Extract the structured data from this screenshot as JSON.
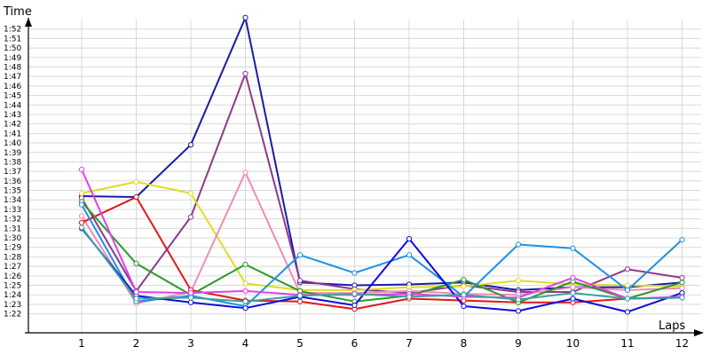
{
  "chart_data": {
    "type": "line",
    "title": "",
    "ylabel": "Time",
    "xlabel": "Laps",
    "x": [
      1,
      2,
      3,
      4,
      5,
      6,
      7,
      8,
      9,
      10,
      11,
      12
    ],
    "ylim_seconds": [
      80,
      113
    ],
    "grid": true,
    "legend": "none",
    "y_tick_labels": [
      "1:22",
      "1:23",
      "1:24",
      "1:25",
      "1:26",
      "1:27",
      "1:28",
      "1:29",
      "1:30",
      "1:31",
      "1:32",
      "1:33",
      "1:34",
      "1:35",
      "1:36",
      "1:37",
      "1:38",
      "1:39",
      "1:40",
      "1:41",
      "1:42",
      "1:43",
      "1:44",
      "1:45",
      "1:46",
      "1:47",
      "1:48",
      "1:49",
      "1:50",
      "1:51",
      "1:52"
    ],
    "y_tick_values": [
      82,
      83,
      84,
      85,
      86,
      87,
      88,
      89,
      90,
      91,
      92,
      93,
      94,
      95,
      96,
      97,
      98,
      99,
      100,
      101,
      102,
      103,
      104,
      105,
      106,
      107,
      108,
      109,
      110,
      111,
      112
    ],
    "series": [
      {
        "color": "#1a1aaa",
        "values": [
          94.4,
          94.3,
          99.8,
          113.2,
          85.3,
          85.0,
          85.1,
          85.3,
          84.5,
          84.8,
          84.8,
          85.3
        ]
      },
      {
        "color": "#8b3a8b",
        "values": [
          94.2,
          84.4,
          92.2,
          107.3,
          85.5,
          84.6,
          84.2,
          85.0,
          84.3,
          84.3,
          86.7,
          85.8
        ]
      },
      {
        "color": "#dddd22",
        "values": [
          94.7,
          95.9,
          94.7,
          85.2,
          84.5,
          84.5,
          84.8,
          84.9,
          85.5,
          85.1,
          85.0,
          84.9
        ]
      },
      {
        "color": "#f08cb4",
        "values": [
          92.3,
          83.1,
          84.3,
          96.9,
          84.2,
          84.2,
          84.4,
          84.1,
          84.0,
          84.8,
          84.5,
          84.7
        ]
      },
      {
        "color": "#e01818",
        "values": [
          91.6,
          94.3,
          84.5,
          83.4,
          83.3,
          82.5,
          83.6,
          83.4,
          83.2,
          83.2,
          83.6,
          83.7
        ]
      },
      {
        "color": "#2a9a2a",
        "values": [
          93.8,
          87.3,
          84.0,
          87.2,
          84.4,
          83.3,
          83.9,
          85.6,
          83.2,
          85.4,
          83.6,
          85.3
        ]
      },
      {
        "color": "#1e90e6",
        "values": [
          93.5,
          83.3,
          83.9,
          82.8,
          88.2,
          86.3,
          88.2,
          83.8,
          89.3,
          88.9,
          84.5,
          89.8
        ]
      },
      {
        "color": "#0c0cdd",
        "values": [
          91.0,
          83.9,
          83.2,
          82.6,
          83.8,
          82.9,
          89.9,
          82.8,
          82.3,
          83.6,
          82.2,
          84.2
        ]
      },
      {
        "color": "#e040e8",
        "values": [
          97.2,
          84.3,
          84.2,
          84.4,
          84.0,
          84.0,
          84.1,
          83.8,
          83.7,
          85.8,
          83.6,
          83.8
        ]
      },
      {
        "color": "#3aa0a0",
        "values": [
          91.1,
          83.6,
          83.7,
          83.3,
          83.9,
          84.1,
          83.8,
          84.0,
          83.5,
          84.2,
          83.6,
          83.7
        ]
      }
    ]
  }
}
